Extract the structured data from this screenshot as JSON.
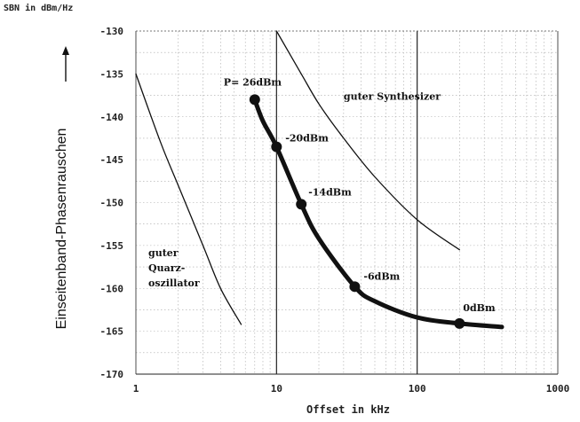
{
  "chart_data": {
    "type": "line",
    "unit_label": "SBN in dBm/Hz",
    "xlabel": "Offset in kHz",
    "ylabel": "Einseitenband-Phasenrauschen",
    "xscale": "log",
    "xlim": [
      1,
      1000
    ],
    "ylim": [
      -170,
      -130
    ],
    "x_ticks": [
      "1",
      "10",
      "100",
      "1000"
    ],
    "y_ticks": [
      "-130",
      "-135",
      "-140",
      "-145",
      "-150",
      "-155",
      "-160",
      "-165",
      "-170"
    ],
    "grid": true,
    "series": [
      {
        "name": "guter Quarz-oszillator",
        "label_lines": [
          "guter",
          "Quarz-",
          "oszillator"
        ],
        "x": [
          1,
          1.5,
          2,
          3,
          4,
          5.6
        ],
        "y": [
          -135,
          -143,
          -148,
          -155,
          -160,
          -164.2
        ],
        "style": "thin"
      },
      {
        "name": "guter Synthesizer",
        "x": [
          10,
          15,
          20,
          30,
          50,
          100,
          200
        ],
        "y": [
          -130,
          -135,
          -138.5,
          -142.5,
          -147,
          -152,
          -155.5
        ],
        "style": "thin"
      },
      {
        "name": "P",
        "x": [
          7,
          8,
          10,
          15,
          20,
          36,
          50,
          100,
          200,
          400
        ],
        "y": [
          -138,
          -140.5,
          -143.5,
          -150.2,
          -154.2,
          -159.8,
          -161.5,
          -163.4,
          -164.1,
          -164.5
        ],
        "style": "thick"
      }
    ],
    "points": [
      {
        "x": 7,
        "y": -138,
        "label": "P= 26dBm",
        "dx": -35,
        "dy": -16
      },
      {
        "x": 10,
        "y": -143.5,
        "label": "-20dBm",
        "dx": 10,
        "dy": -6
      },
      {
        "x": 15,
        "y": -150.2,
        "label": "-14dBm",
        "dx": 8,
        "dy": -10
      },
      {
        "x": 36,
        "y": -159.8,
        "label": "-6dBm",
        "dx": 10,
        "dy": -8
      },
      {
        "x": 200,
        "y": -164.1,
        "label": "0dBm",
        "dx": 4,
        "dy": -14
      }
    ],
    "annotations": [
      {
        "text": "guter Synthesizer",
        "x": 30,
        "y": -138
      }
    ]
  }
}
